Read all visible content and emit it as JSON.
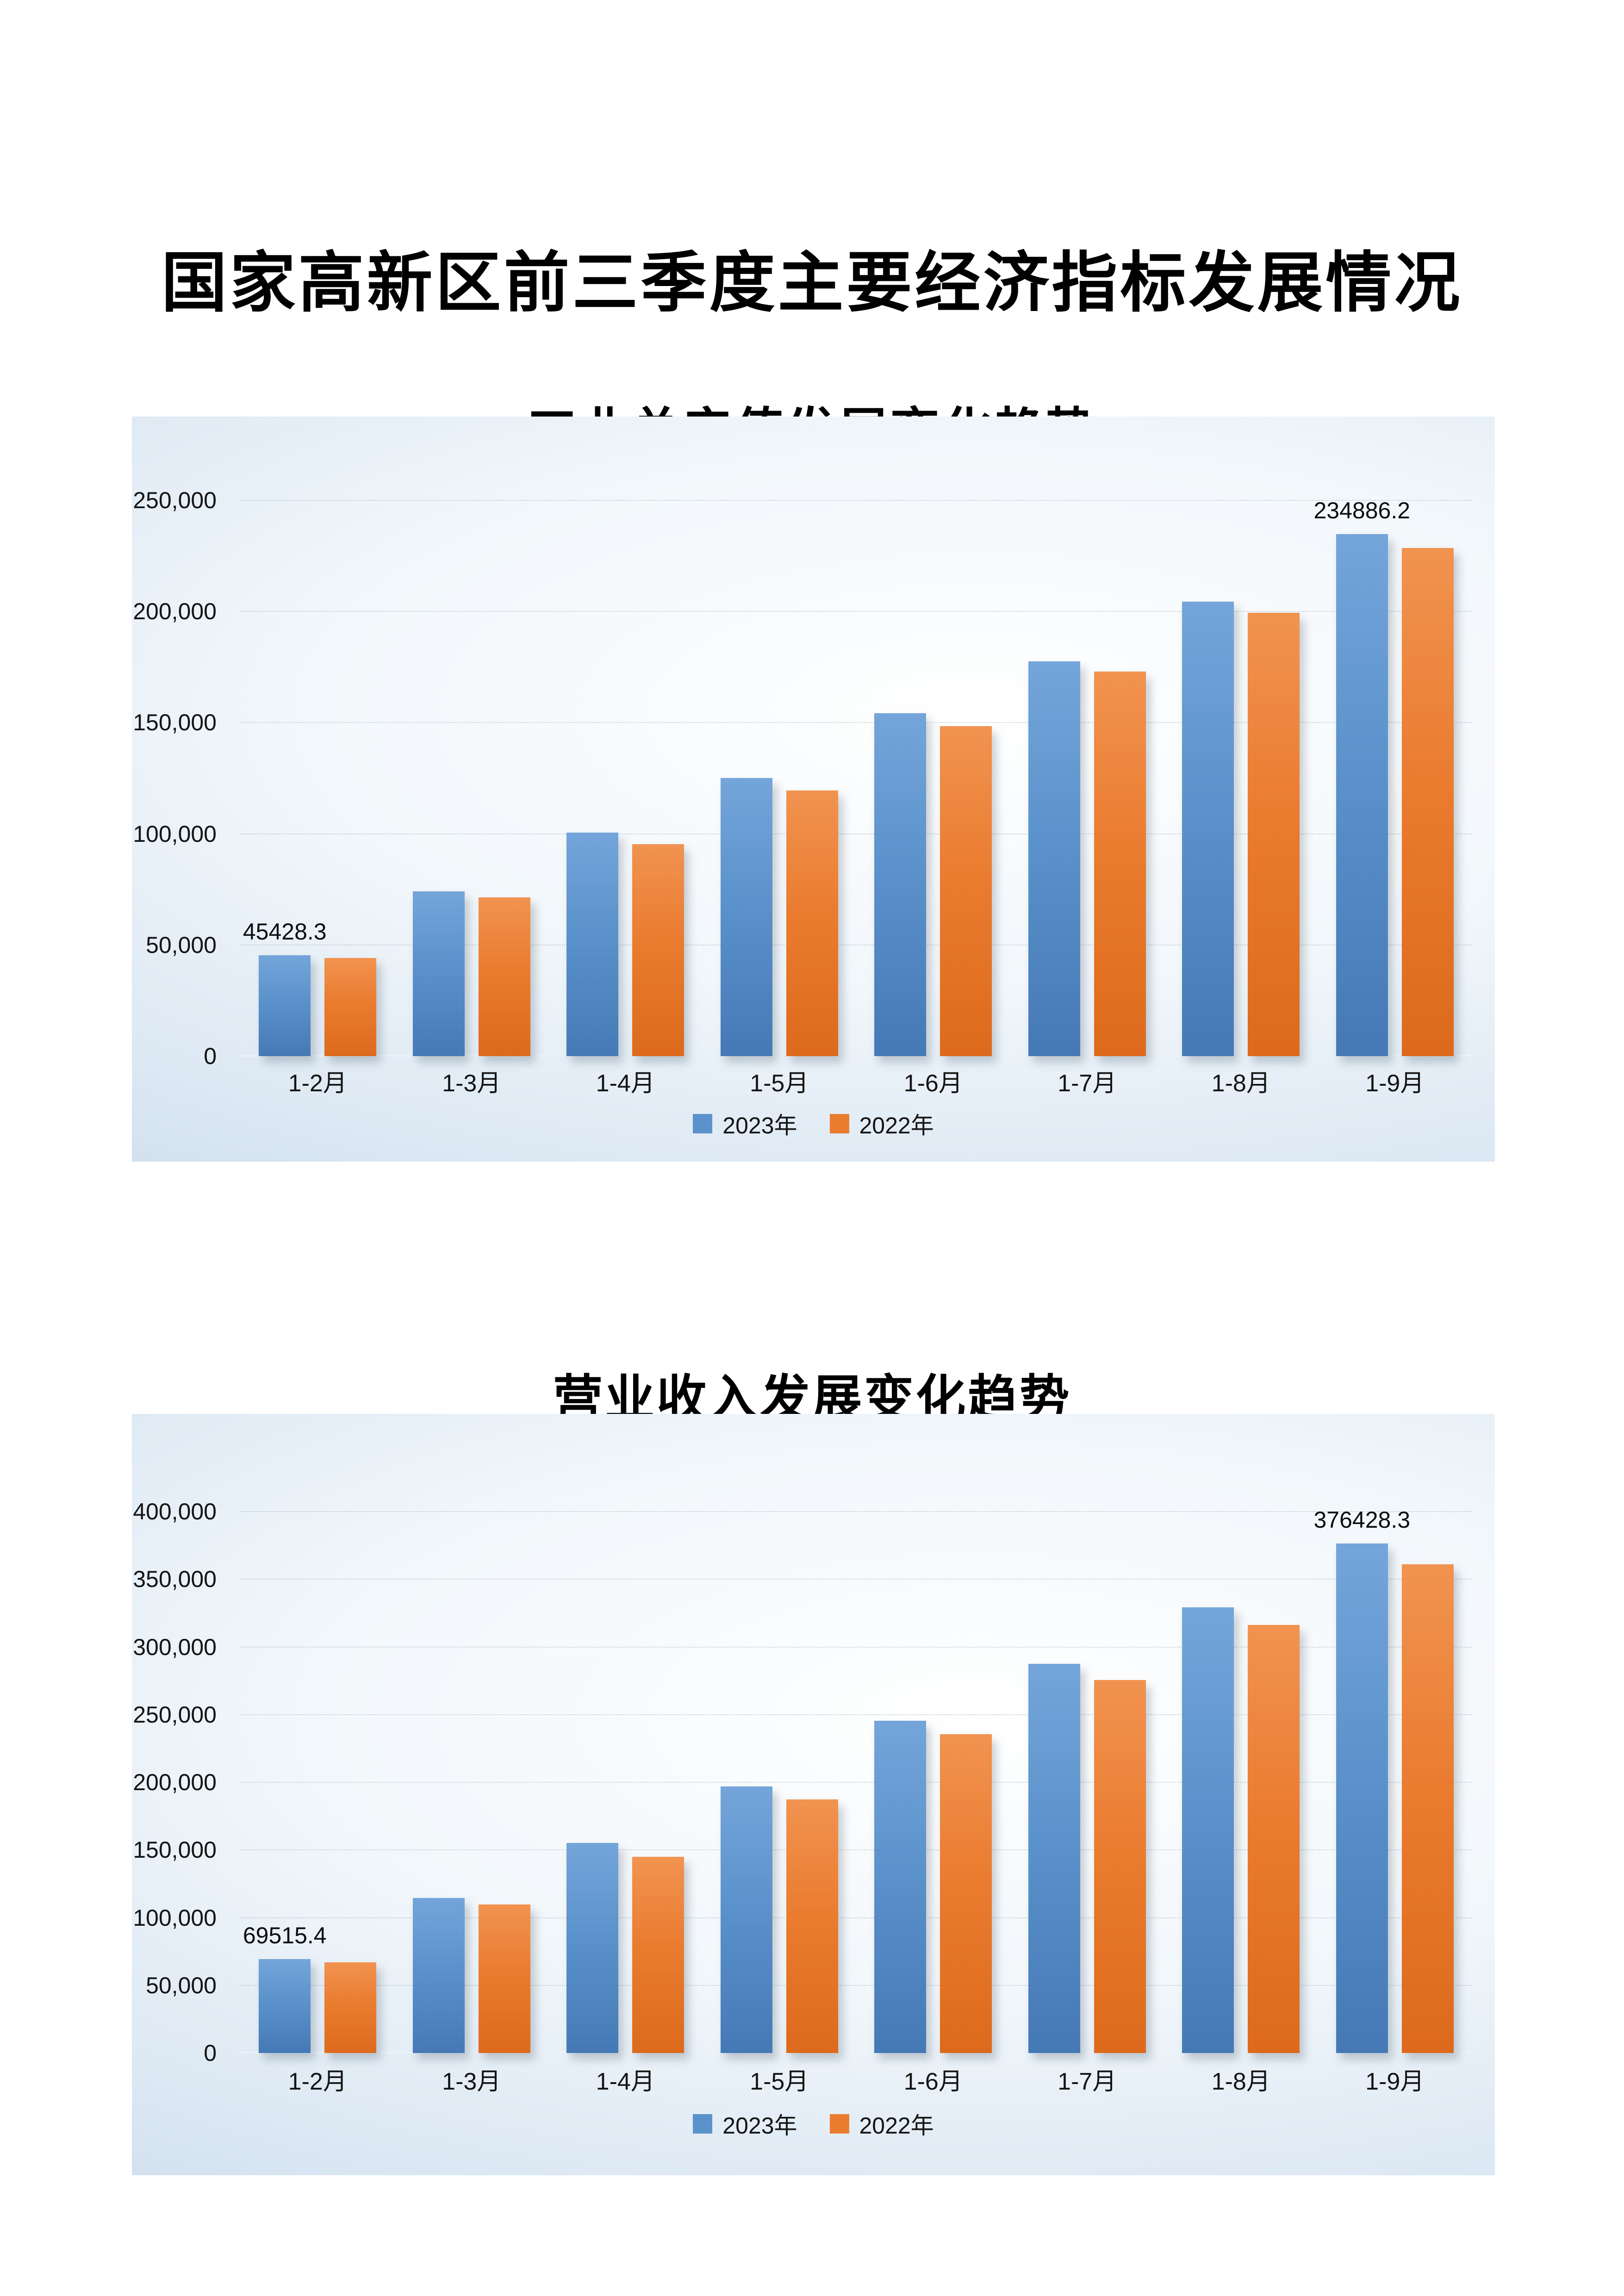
{
  "page": {
    "title": "国家高新区前三季度主要经济指标发展情况"
  },
  "colors": {
    "series_2023": "#5b92cb",
    "series_2022": "#ea7c30",
    "chart_background_edge": "#c3d6ea",
    "chart_background_center": "#ffffff",
    "text": "#141414"
  },
  "charts": [
    {
      "title": "工业总产值发展变化趋势",
      "chart_data": {
        "type": "bar",
        "categories": [
          "1-2月",
          "1-3月",
          "1-4月",
          "1-5月",
          "1-6月",
          "1-7月",
          "1-8月",
          "1-9月"
        ],
        "series": [
          {
            "name": "2023年",
            "values": [
              45428.3,
              74100,
              100600,
              125100,
              154300,
              177500,
              204500,
              234886.2
            ],
            "labels": {
              "0": "45428.3",
              "7": "234886.2"
            }
          },
          {
            "name": "2022年",
            "values": [
              44200,
              71500,
              95300,
              119400,
              148400,
              173000,
              199500,
              228600
            ],
            "labels": {}
          }
        ],
        "ylim": [
          0,
          250000
        ],
        "ytick_step": 50000,
        "yticks": [
          {
            "value": 250000,
            "label": "250,000"
          },
          {
            "value": 200000,
            "label": "200,000"
          },
          {
            "value": 150000,
            "label": "150,000"
          },
          {
            "value": 100000,
            "label": "100,000"
          },
          {
            "value": 50000,
            "label": "50,000"
          },
          {
            "value": 0,
            "label": "0"
          }
        ],
        "grid": true,
        "legend_position": "bottom"
      }
    },
    {
      "title": "营业收入发展变化趋势",
      "chart_data": {
        "type": "bar",
        "categories": [
          "1-2月",
          "1-3月",
          "1-4月",
          "1-5月",
          "1-6月",
          "1-7月",
          "1-8月",
          "1-9月"
        ],
        "series": [
          {
            "name": "2023年",
            "values": [
              69515.4,
              114500,
              155200,
              197000,
              245500,
              287500,
              329100,
              376428.3
            ],
            "labels": {
              "0": "69515.4",
              "7": "376428.3"
            }
          },
          {
            "name": "2022年",
            "values": [
              67000,
              109900,
              144800,
              187500,
              235400,
              275500,
              316100,
              361000
            ],
            "labels": {}
          }
        ],
        "ylim": [
          0,
          400000
        ],
        "ytick_step": 50000,
        "yticks": [
          {
            "value": 400000,
            "label": "400,000"
          },
          {
            "value": 350000,
            "label": "350,000"
          },
          {
            "value": 300000,
            "label": "300,000"
          },
          {
            "value": 250000,
            "label": "250,000"
          },
          {
            "value": 200000,
            "label": "200,000"
          },
          {
            "value": 150000,
            "label": "150,000"
          },
          {
            "value": 100000,
            "label": "100,000"
          },
          {
            "value": 50000,
            "label": "50,000"
          },
          {
            "value": 0,
            "label": "0"
          }
        ],
        "grid": true,
        "legend_position": "bottom"
      }
    }
  ]
}
